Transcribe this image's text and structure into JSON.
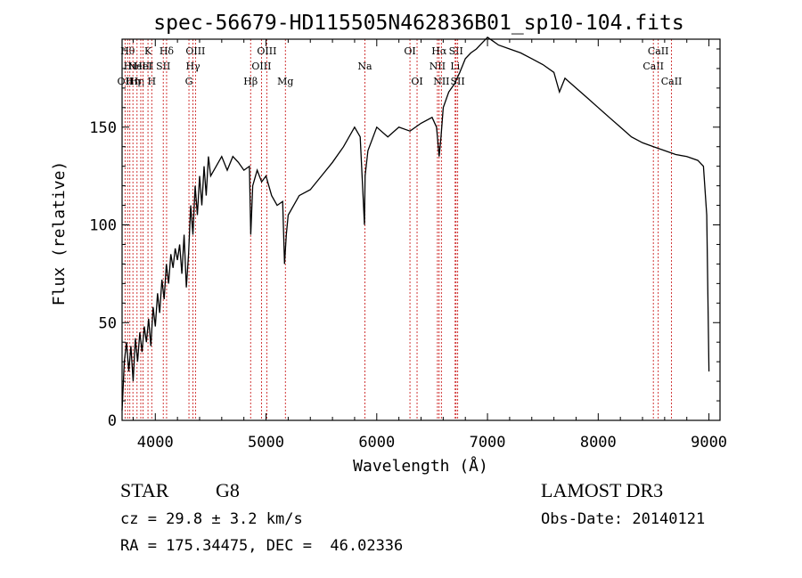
{
  "chart_data": {
    "type": "line",
    "title": "spec-56679-HD115505N462836B01_sp10-104.fits",
    "xlabel": "Wavelength (Å)",
    "ylabel": "Flux (relative)",
    "xlim": [
      3700,
      9100
    ],
    "ylim": [
      0,
      195
    ],
    "x_ticks": [
      4000,
      5000,
      6000,
      7000,
      8000,
      9000
    ],
    "y_ticks": [
      0,
      50,
      100,
      150
    ],
    "grid": false,
    "series": [
      {
        "x": [
          3700,
          3720,
          3740,
          3760,
          3780,
          3800,
          3820,
          3840,
          3860,
          3880,
          3900,
          3920,
          3940,
          3960,
          3980,
          4000,
          4020,
          4040,
          4060,
          4080,
          4100,
          4120,
          4140,
          4160,
          4180,
          4200,
          4220,
          4240,
          4260,
          4280,
          4300,
          4320,
          4340,
          4360,
          4380,
          4400,
          4420,
          4440,
          4460,
          4480,
          4500,
          4550,
          4600,
          4650,
          4700,
          4750,
          4800,
          4850,
          4862,
          4880,
          4920,
          4960,
          5000,
          5050,
          5100,
          5150,
          5167,
          5183,
          5200,
          5250,
          5300,
          5400,
          5500,
          5600,
          5700,
          5800,
          5850,
          5889,
          5895,
          5920,
          6000,
          6100,
          6200,
          6300,
          6400,
          6500,
          6540,
          6563,
          6580,
          6600,
          6650,
          6700,
          6750,
          6800,
          6850,
          6900,
          6950,
          7000,
          7050,
          7100,
          7200,
          7300,
          7400,
          7500,
          7600,
          7650,
          7700,
          7800,
          7900,
          8000,
          8100,
          8200,
          8300,
          8400,
          8500,
          8600,
          8700,
          8800,
          8900,
          8950,
          8980,
          9000
        ],
        "y": [
          5,
          30,
          40,
          25,
          38,
          20,
          42,
          30,
          45,
          35,
          48,
          40,
          52,
          38,
          58,
          48,
          65,
          55,
          72,
          62,
          80,
          70,
          85,
          78,
          88,
          82,
          90,
          75,
          95,
          68,
          85,
          110,
          95,
          120,
          105,
          125,
          110,
          130,
          115,
          135,
          125,
          130,
          135,
          128,
          135,
          132,
          128,
          130,
          95,
          120,
          128,
          122,
          125,
          115,
          110,
          112,
          80,
          95,
          105,
          110,
          115,
          118,
          125,
          132,
          140,
          150,
          145,
          100,
          125,
          138,
          150,
          145,
          150,
          148,
          152,
          155,
          150,
          135,
          145,
          160,
          168,
          172,
          178,
          185,
          188,
          190,
          193,
          196,
          194,
          192,
          190,
          188,
          185,
          182,
          178,
          168,
          175,
          170,
          165,
          160,
          155,
          150,
          145,
          142,
          140,
          138,
          136,
          135,
          133,
          130,
          105,
          25
        ]
      }
    ],
    "line_markers": [
      {
        "wavelength": 3727,
        "labels": [
          "OII"
        ],
        "row": 2
      },
      {
        "wavelength": 3750,
        "labels": [
          "Hθ"
        ],
        "row": 0
      },
      {
        "wavelength": 3770,
        "labels": [
          "Hι"
        ],
        "row": 1
      },
      {
        "wavelength": 3798,
        "labels": [
          "Hη"
        ],
        "row": 2
      },
      {
        "wavelength": 3835,
        "labels": [
          "Hη"
        ],
        "row": 2
      },
      {
        "wavelength": 3869,
        "labels": [
          "NeIII"
        ],
        "row": 1
      },
      {
        "wavelength": 3889,
        "labels": [
          "HeI"
        ],
        "row": 1
      },
      {
        "wavelength": 3934,
        "labels": [
          "K"
        ],
        "row": 0
      },
      {
        "wavelength": 3968,
        "labels": [
          "H"
        ],
        "row": 2
      },
      {
        "wavelength": 4072,
        "labels": [
          "SII"
        ],
        "row": 1
      },
      {
        "wavelength": 4102,
        "labels": [
          "Hδ"
        ],
        "row": 0
      },
      {
        "wavelength": 4304,
        "labels": [
          "G"
        ],
        "row": 2
      },
      {
        "wavelength": 4340,
        "labels": [
          "Hγ"
        ],
        "row": 1
      },
      {
        "wavelength": 4363,
        "labels": [
          "OIII"
        ],
        "row": 0
      },
      {
        "wavelength": 4861,
        "labels": [
          "Hβ"
        ],
        "row": 2
      },
      {
        "wavelength": 4959,
        "labels": [
          "OIII"
        ],
        "row": 1
      },
      {
        "wavelength": 5007,
        "labels": [
          "OIII"
        ],
        "row": 0
      },
      {
        "wavelength": 5175,
        "labels": [
          "Mg"
        ],
        "row": 2
      },
      {
        "wavelength": 5893,
        "labels": [
          "Na"
        ],
        "row": 1
      },
      {
        "wavelength": 6300,
        "labels": [
          "OI"
        ],
        "row": 0
      },
      {
        "wavelength": 6364,
        "labels": [
          "OI"
        ],
        "row": 2
      },
      {
        "wavelength": 6548,
        "labels": [
          "NII"
        ],
        "row": 1
      },
      {
        "wavelength": 6563,
        "labels": [
          "Hα"
        ],
        "row": 0
      },
      {
        "wavelength": 6584,
        "labels": [
          "NII"
        ],
        "row": 2
      },
      {
        "wavelength": 6708,
        "labels": [
          "Li"
        ],
        "row": 1
      },
      {
        "wavelength": 6716,
        "labels": [
          "SII"
        ],
        "row": 0
      },
      {
        "wavelength": 6731,
        "labels": [
          "SII"
        ],
        "row": 2
      },
      {
        "wavelength": 8498,
        "labels": [
          "CaII"
        ],
        "row": 1
      },
      {
        "wavelength": 8542,
        "labels": [
          "CaII"
        ],
        "row": 0
      },
      {
        "wavelength": 8662,
        "labels": [
          "CaII"
        ],
        "row": 2
      }
    ]
  },
  "info": {
    "object_type": "STAR",
    "subclass": "G8",
    "survey": "LAMOST DR3",
    "cz": "cz = 29.8 ± 3.2 km/s",
    "obs_date": "Obs-Date: 20140121",
    "coords": "RA = 175.34475, DEC =  46.02336"
  },
  "colors": {
    "line_marker": "#cc2222",
    "spectrum": "#000000"
  }
}
